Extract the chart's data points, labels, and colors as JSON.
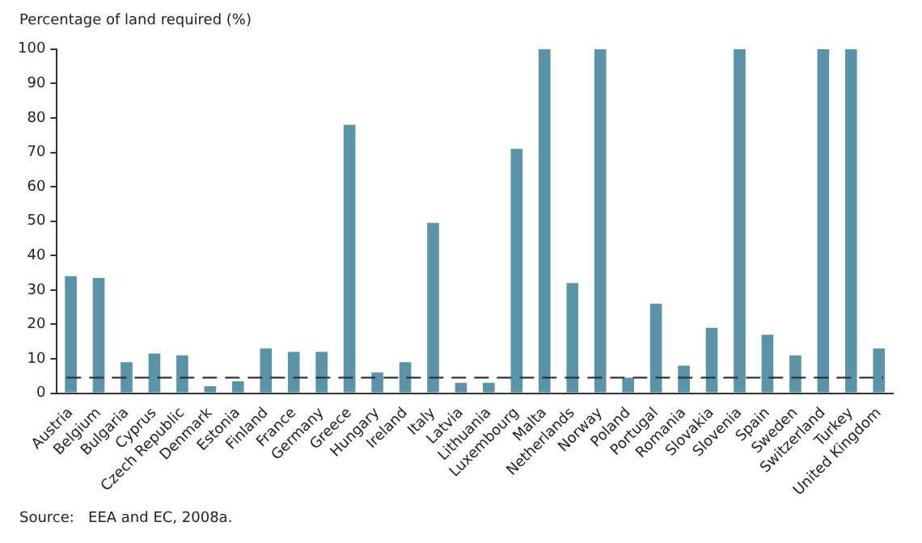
{
  "chart_data": {
    "type": "bar",
    "ylabel": "Percentage of land required (%)",
    "categories": [
      "Austria",
      "Belgium",
      "Bulgaria",
      "Cyprus",
      "Czech Republic",
      "Denmark",
      "Estonia",
      "Finland",
      "France",
      "Germany",
      "Greece",
      "Hungary",
      "Ireland",
      "Italy",
      "Latvia",
      "Lithuania",
      "Luxembourg",
      "Malta",
      "Netherlands",
      "Norway",
      "Poland",
      "Portugal",
      "Romania",
      "Slovakia",
      "Slovenia",
      "Spain",
      "Sweden",
      "Switzerland",
      "Turkey",
      "United Kingdom"
    ],
    "values": [
      34,
      33.5,
      9,
      11.5,
      11,
      2,
      3.5,
      13,
      12,
      12,
      78,
      6,
      9,
      49.5,
      3,
      3,
      71,
      100,
      32,
      100,
      4.5,
      26,
      8,
      19,
      100,
      17,
      11,
      100,
      100,
      13
    ],
    "color": "#5b93a8",
    "ylim": [
      0,
      100
    ],
    "yticks": [
      0,
      10,
      20,
      30,
      40,
      50,
      60,
      70,
      80,
      90,
      100
    ],
    "grid": false,
    "legend": false,
    "ref_lines": [
      {
        "axis": "y",
        "value": 4.5,
        "color": "#333333",
        "line_style": "dashed"
      }
    ],
    "annotations": [
      "Source:   EEA and EC, 2008a."
    ]
  }
}
